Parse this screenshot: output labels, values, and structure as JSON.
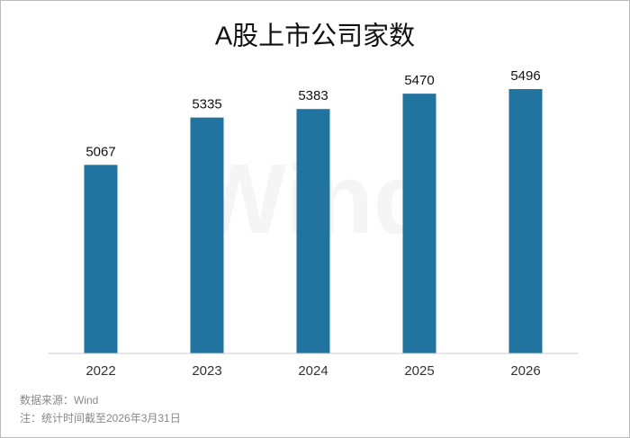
{
  "chart_data": {
    "type": "bar",
    "title": "A股上市公司家数",
    "categories": [
      "2022",
      "2023",
      "2024",
      "2025",
      "2026"
    ],
    "values": [
      5067,
      5335,
      5383,
      5470,
      5496
    ],
    "color": "#21749f",
    "ylim": [
      4000,
      5600
    ],
    "watermark": "Wind",
    "source": "数据来源：Wind",
    "note": "注：统计时间截至2026年3月31日"
  }
}
